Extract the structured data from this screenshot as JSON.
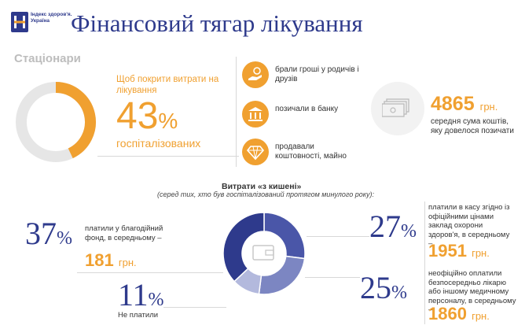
{
  "header": {
    "logo_text": "Індекс здоров'я. Україна",
    "title": "Фінансовий тягар лікування"
  },
  "section": "Стаціонари",
  "stationary": {
    "lead": "Щоб покрити витрати на лікування",
    "percent": "43",
    "percent_sign": "%",
    "sub": "госпіталізованих",
    "donut_fraction": 0.43,
    "sources": [
      {
        "icon": "hand-money-icon",
        "label": "брали гроші у родичів і друзів"
      },
      {
        "icon": "bank-icon",
        "label": "позичали в банку"
      },
      {
        "icon": "diamond-icon",
        "label": "продавали коштовності, майно"
      }
    ],
    "sum": {
      "value": "4865",
      "unit": "грн.",
      "label": "середня сума коштів, яку довелося позичати"
    }
  },
  "out_of_pocket": {
    "title": "Витрати «з кишені»",
    "subtitle": "(серед тих, хто був госпіталізований протягом минулого року):",
    "items": [
      {
        "percent": "37",
        "sign": "%",
        "label": "платили у благодійний фонд, в середньому –",
        "amount": "181",
        "unit": "грн."
      },
      {
        "percent": "11",
        "sign": "%",
        "label": "Не платили",
        "amount": "",
        "unit": ""
      },
      {
        "percent": "27",
        "sign": "%",
        "label": "платили в касу згідно із офіційними цінами заклад охорони здоров'я, в середньому –",
        "amount": "1951",
        "unit": "грн."
      },
      {
        "percent": "25",
        "sign": "%",
        "label": "неофіційно оплатили безпосередньо лікарю або іншому медичному персоналу, в середньому –",
        "amount": "1860",
        "unit": "грн."
      }
    ],
    "colors": {
      "37": "#2e3a8c",
      "27": "#4a56a8",
      "25": "#7c86c2",
      "11": "#b3b9dd"
    }
  }
}
